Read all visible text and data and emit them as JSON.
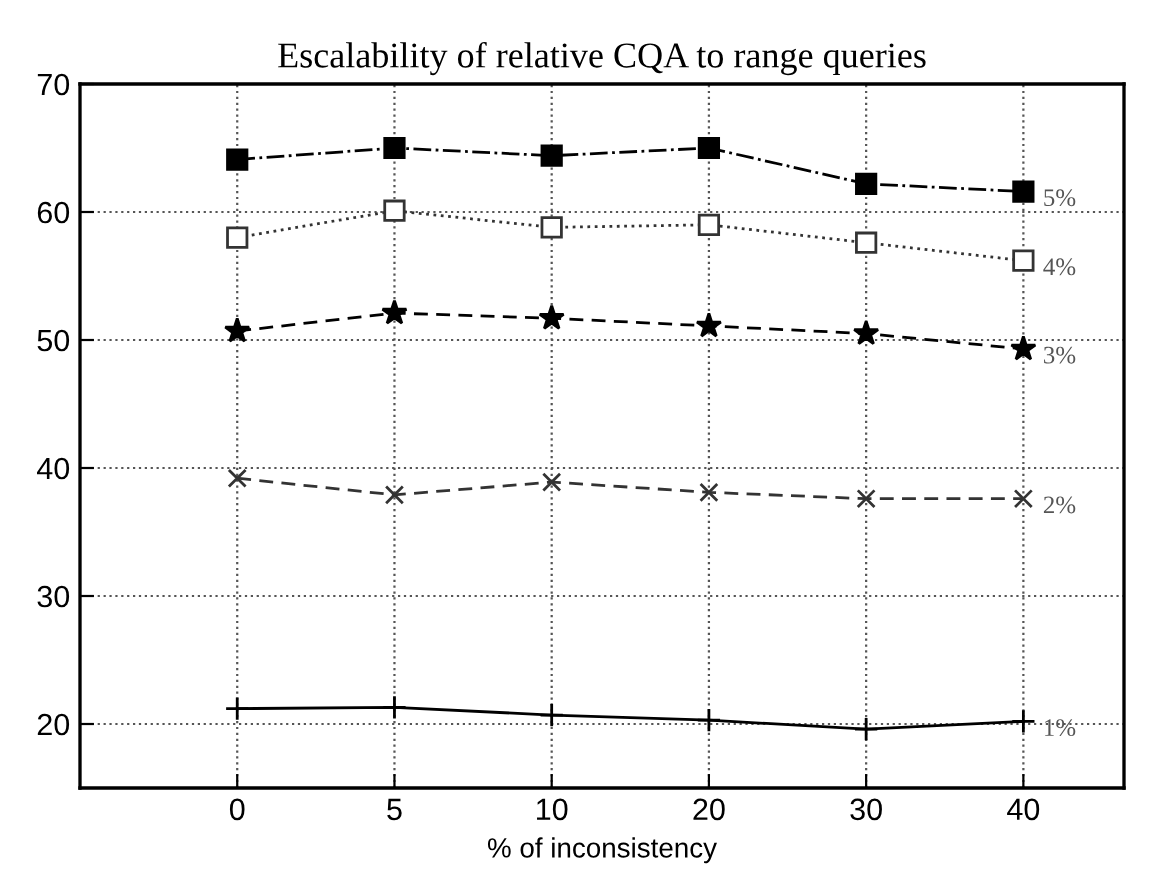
{
  "chart_data": {
    "type": "line",
    "title": "Escalability of relative CQA to range queries",
    "xlabel": "% of inconsistency",
    "categories": [
      "0",
      "5",
      "10",
      "20",
      "30",
      "40"
    ],
    "ylim": [
      15,
      70
    ],
    "yticks": [
      20,
      30,
      40,
      50,
      60,
      70
    ],
    "grid": true,
    "legend": false,
    "series": [
      {
        "name": "1%",
        "color": "#000000",
        "marker": "plus",
        "line_style": "solid",
        "values": [
          21.2,
          21.3,
          20.7,
          20.3,
          19.6,
          20.2
        ]
      },
      {
        "name": "2%",
        "color": "#333333",
        "marker": "cross",
        "line_style": "dashed",
        "values": [
          39.2,
          37.9,
          38.9,
          38.1,
          37.6,
          37.6
        ]
      },
      {
        "name": "3%",
        "color": "#000000",
        "marker": "star",
        "line_style": "dashed",
        "values": [
          50.7,
          52.1,
          51.7,
          51.1,
          50.5,
          49.3
        ]
      },
      {
        "name": "4%",
        "color": "#333333",
        "marker": "square_open",
        "line_style": "dotted",
        "values": [
          58.0,
          60.1,
          58.8,
          59.0,
          57.6,
          56.2
        ]
      },
      {
        "name": "5%",
        "color": "#000000",
        "marker": "square",
        "line_style": "dashdot",
        "values": [
          64.1,
          65.0,
          64.4,
          65.0,
          62.2,
          61.6
        ]
      }
    ]
  }
}
